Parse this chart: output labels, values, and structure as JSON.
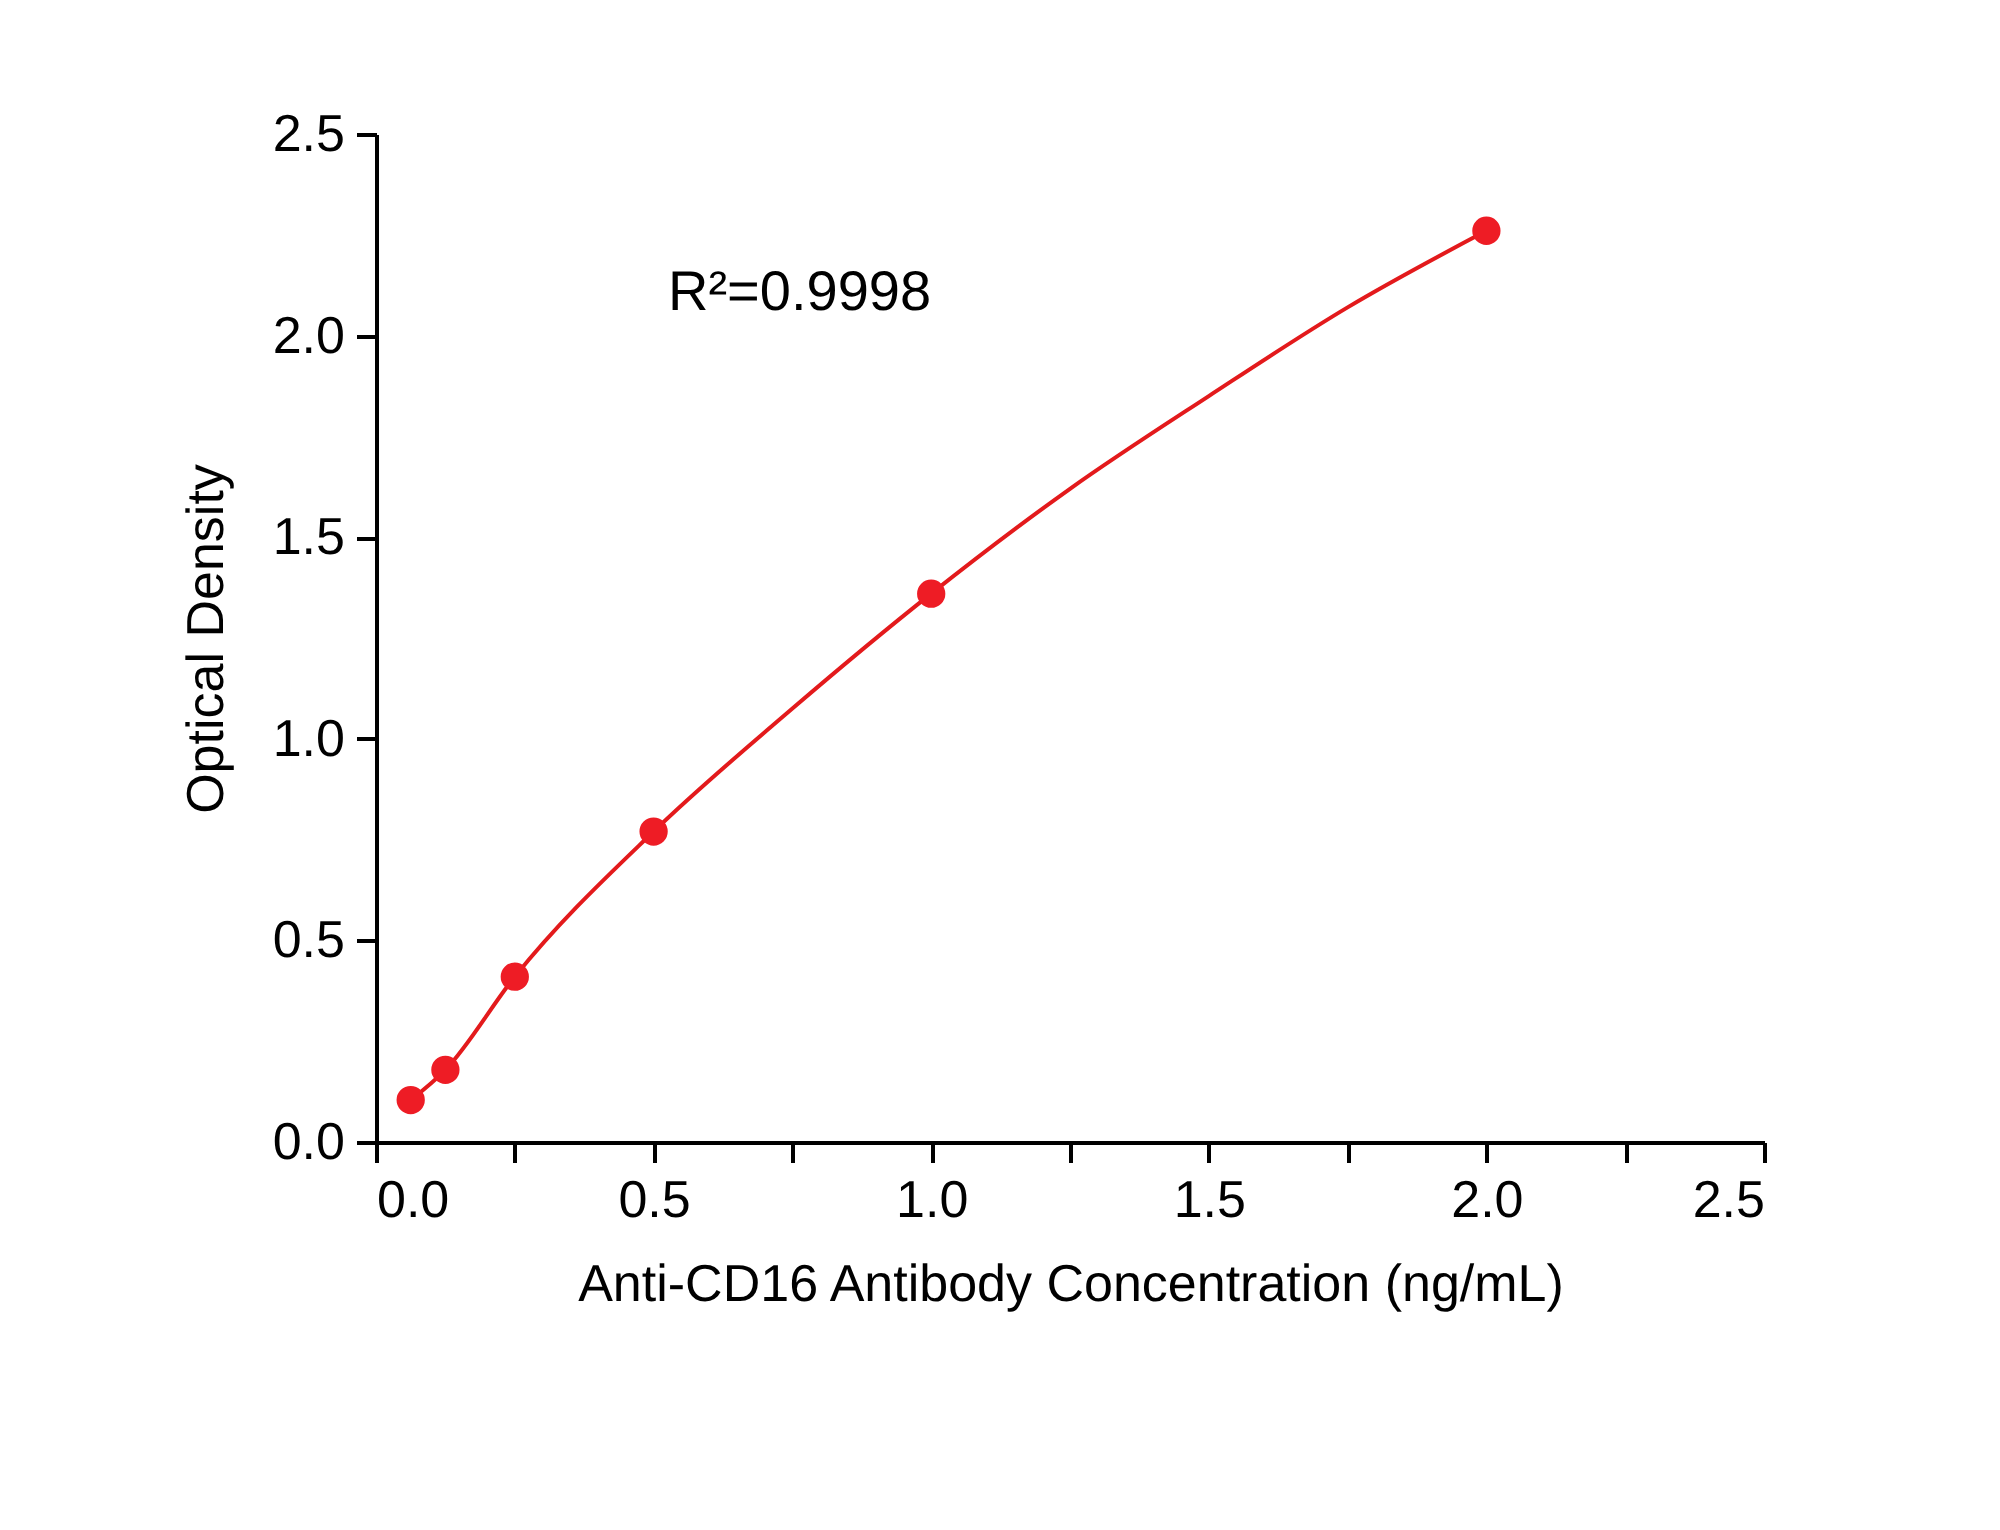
{
  "chart_data": {
    "type": "scatter",
    "xlabel": "Anti-CD16 Antibody Concentration (ng/mL)",
    "ylabel": "Optical Density",
    "annotations": [
      "R²=0.9998"
    ],
    "series": [
      {
        "color": "#ee1c25",
        "marker": "circle",
        "x": [
          0.0625,
          0.125,
          0.25,
          0.5,
          1.0,
          2.0
        ],
        "values": [
          0.104,
          0.179,
          0.41,
          0.77,
          1.36,
          2.26
        ]
      },
      {
        "type": "line",
        "color": "#e31a1c",
        "line_style": "solid",
        "x": [
          0.0625,
          0.125,
          0.25,
          0.5,
          0.75,
          1.0,
          1.25,
          1.5,
          1.75,
          2.0
        ],
        "values": [
          0.104,
          0.179,
          0.41,
          0.77,
          1.075,
          1.36,
          1.62,
          1.85,
          2.07,
          2.26
        ]
      }
    ],
    "xlim": [
      0,
      2.5
    ],
    "ylim": [
      0,
      2.5
    ],
    "xticks": [
      {
        "value": 0,
        "label": "0.0"
      },
      {
        "value": 0.25,
        "label": null
      },
      {
        "value": 0.5,
        "label": "0.5"
      },
      {
        "value": 0.75,
        "label": null
      },
      {
        "value": 1.0,
        "label": "1.0"
      },
      {
        "value": 1.25,
        "label": null
      },
      {
        "value": 1.5,
        "label": "1.5"
      },
      {
        "value": 1.75,
        "label": null
      },
      {
        "value": 2.0,
        "label": "2.0"
      },
      {
        "value": 2.25,
        "label": null
      },
      {
        "value": 2.5,
        "label": "2.5"
      }
    ],
    "yticks": [
      {
        "value": 0,
        "label": "0.0"
      },
      {
        "value": 0.5,
        "label": "0.5"
      },
      {
        "value": 1.0,
        "label": "1.0"
      },
      {
        "value": 1.5,
        "label": "1.5"
      },
      {
        "value": 2.0,
        "label": "2.0"
      },
      {
        "value": 2.5,
        "label": "2.5"
      }
    ],
    "grid": false
  }
}
